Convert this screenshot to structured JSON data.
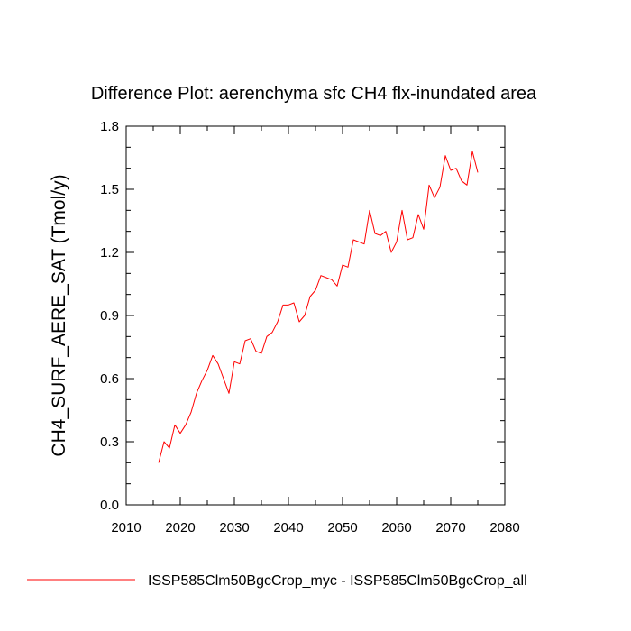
{
  "chart_data": {
    "type": "line",
    "title": "Difference Plot: aerenchyma sfc CH4 flx-inundated area",
    "xlabel": "",
    "ylabel": "CH4_SURF_AERE_SAT  (Tmol/y)",
    "xlim": [
      2010,
      2080
    ],
    "ylim": [
      0.0,
      1.8
    ],
    "x_ticks": [
      2010,
      2020,
      2030,
      2040,
      2050,
      2060,
      2070,
      2080
    ],
    "y_ticks": [
      0.0,
      0.3,
      0.6,
      0.9,
      1.2,
      1.5,
      1.8
    ],
    "y_tick_labels": [
      "0.0",
      "0.3",
      "0.6",
      "0.9",
      "1.2",
      "1.5",
      "1.8"
    ],
    "grid": false,
    "legend_position": "bottom",
    "x": [
      2016,
      2017,
      2018,
      2019,
      2020,
      2021,
      2022,
      2023,
      2024,
      2025,
      2026,
      2027,
      2028,
      2029,
      2030,
      2031,
      2032,
      2033,
      2034,
      2035,
      2036,
      2037,
      2038,
      2039,
      2040,
      2041,
      2042,
      2043,
      2044,
      2045,
      2046,
      2047,
      2048,
      2049,
      2050,
      2051,
      2052,
      2053,
      2054,
      2055,
      2056,
      2057,
      2058,
      2059,
      2060,
      2061,
      2062,
      2063,
      2064,
      2065,
      2066,
      2067,
      2068,
      2069,
      2070,
      2071,
      2072,
      2073,
      2074,
      2075
    ],
    "series": [
      {
        "name": "ISSP585Clm50BgcCrop_myc - ISSP585Clm50BgcCrop_all",
        "color": "#ff0000",
        "values": [
          0.2,
          0.3,
          0.27,
          0.38,
          0.34,
          0.38,
          0.44,
          0.53,
          0.59,
          0.64,
          0.71,
          0.67,
          0.6,
          0.53,
          0.68,
          0.67,
          0.78,
          0.79,
          0.73,
          0.72,
          0.8,
          0.82,
          0.87,
          0.95,
          0.95,
          0.96,
          0.87,
          0.9,
          0.99,
          1.02,
          1.09,
          1.08,
          1.07,
          1.04,
          1.14,
          1.13,
          1.26,
          1.25,
          1.24,
          1.4,
          1.29,
          1.28,
          1.3,
          1.2,
          1.25,
          1.4,
          1.26,
          1.27,
          1.38,
          1.31,
          1.52,
          1.46,
          1.51,
          1.66,
          1.59,
          1.6,
          1.54,
          1.52,
          1.68,
          1.58
        ]
      }
    ]
  }
}
